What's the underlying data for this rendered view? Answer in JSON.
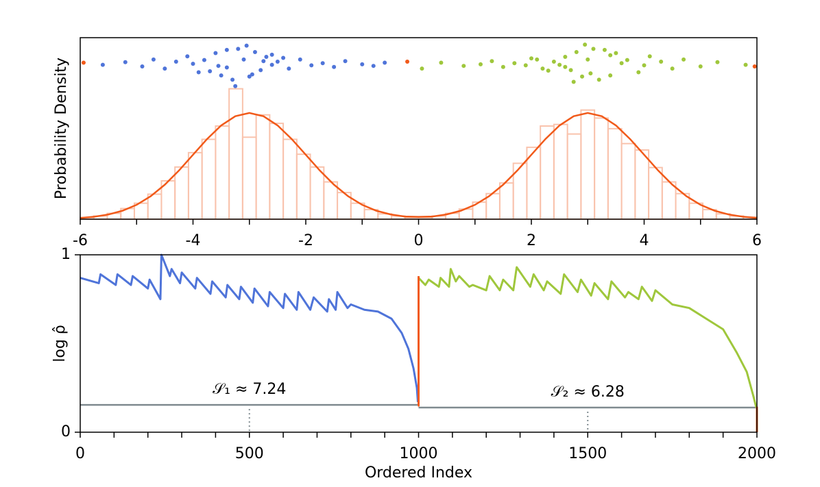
{
  "chart_data": [
    {
      "type": "histogram",
      "ylabel": "Probability Density",
      "xlim": [
        -6,
        6
      ],
      "ylim": [
        0,
        0.341
      ],
      "xticks": [
        -6,
        -4,
        -2,
        0,
        2,
        4,
        6
      ],
      "xminorticks": [
        -5,
        -3,
        -1,
        1,
        3,
        5
      ],
      "hist_color": "#f9c3ad",
      "bins": [
        -6,
        -5.76,
        -5.52,
        -5.28,
        -5.04,
        -4.8,
        -4.56,
        -4.32,
        -4.08,
        -3.84,
        -3.6,
        -3.36,
        -3.12,
        -2.88,
        -2.64,
        -2.4,
        -2.16,
        -1.92,
        -1.68,
        -1.44,
        -1.2,
        -0.96,
        -0.72,
        -0.48,
        -0.24,
        0,
        0.24,
        0.48,
        0.72,
        0.96,
        1.2,
        1.44,
        1.68,
        1.92,
        2.16,
        2.4,
        2.64,
        2.88,
        3.12,
        3.36,
        3.6,
        3.84,
        4.08,
        4.32,
        4.56,
        4.8,
        5.04,
        5.28,
        5.52,
        5.76,
        6
      ],
      "values": [
        0.003,
        0.006,
        0.011,
        0.02,
        0.03,
        0.047,
        0.072,
        0.098,
        0.125,
        0.15,
        0.175,
        0.245,
        0.154,
        0.196,
        0.18,
        0.15,
        0.122,
        0.098,
        0.07,
        0.05,
        0.03,
        0.018,
        0.01,
        0.006,
        0.003,
        0.003,
        0.006,
        0.011,
        0.019,
        0.032,
        0.048,
        0.068,
        0.105,
        0.135,
        0.175,
        0.178,
        0.16,
        0.205,
        0.19,
        0.17,
        0.142,
        0.13,
        0.097,
        0.07,
        0.048,
        0.03,
        0.018,
        0.01,
        0.006,
        0.004
      ],
      "curve": {
        "color": "#f15a1a",
        "x": [
          -6,
          -5.75,
          -5.5,
          -5.25,
          -5,
          -4.75,
          -4.5,
          -4.25,
          -4,
          -3.75,
          -3.5,
          -3.25,
          -3,
          -2.75,
          -2.5,
          -2.25,
          -2,
          -1.75,
          -1.5,
          -1.25,
          -1,
          -0.75,
          -0.5,
          -0.25,
          0,
          0.25,
          0.5,
          0.75,
          1,
          1.25,
          1.5,
          1.75,
          2,
          2.25,
          2.5,
          2.75,
          3,
          3.25,
          3.5,
          3.75,
          4,
          4.25,
          4.5,
          4.75,
          5,
          5.25,
          5.5,
          5.75,
          6
        ],
        "values": [
          0.0022,
          0.0046,
          0.0088,
          0.0159,
          0.027,
          0.0432,
          0.0648,
          0.0913,
          0.121,
          0.1506,
          0.1761,
          0.1934,
          0.1995,
          0.1934,
          0.1761,
          0.1506,
          0.121,
          0.0913,
          0.0648,
          0.0432,
          0.027,
          0.0159,
          0.009,
          0.005,
          0.0044,
          0.005,
          0.009,
          0.0159,
          0.027,
          0.0432,
          0.0648,
          0.0913,
          0.121,
          0.1506,
          0.1761,
          0.1934,
          0.1995,
          0.1934,
          0.1761,
          0.1506,
          0.121,
          0.0913,
          0.0648,
          0.0432,
          0.027,
          0.0159,
          0.0088,
          0.0046,
          0.0022
        ]
      },
      "scatter": [
        {
          "color": "#4f74d9",
          "x": [
            -5.6,
            -5.2,
            -4.9,
            -4.7,
            -4.5,
            -4.3,
            -4.1,
            -3.9,
            -3.8,
            -3.6,
            -3.5,
            -3.4,
            -3.3,
            -3.2,
            -3.1,
            -3.0,
            -2.9,
            -2.8,
            -2.7,
            -2.6,
            -2.5,
            -2.3,
            -2.1,
            -1.9,
            -1.7,
            -1.5,
            -1.3,
            -1.0,
            -0.8,
            -0.6,
            -3.25,
            -3.05,
            -2.95,
            -3.4,
            -2.6,
            -3.7,
            -4.0,
            -2.4,
            -3.55,
            -2.75
          ],
          "values": [
            0.29,
            0.295,
            0.287,
            0.3,
            0.283,
            0.296,
            0.306,
            0.276,
            0.299,
            0.312,
            0.27,
            0.318,
            0.262,
            0.32,
            0.3,
            0.268,
            0.314,
            0.28,
            0.305,
            0.29,
            0.296,
            0.283,
            0.3,
            0.289,
            0.293,
            0.286,
            0.297,
            0.291,
            0.288,
            0.294,
            0.25,
            0.326,
            0.272,
            0.285,
            0.309,
            0.278,
            0.292,
            0.303,
            0.288,
            0.297
          ]
        },
        {
          "color": "#9fc73c",
          "x": [
            0.06,
            0.4,
            0.8,
            1.1,
            1.3,
            1.5,
            1.7,
            1.9,
            2.1,
            2.2,
            2.4,
            2.5,
            2.6,
            2.7,
            2.8,
            2.9,
            3.0,
            3.1,
            3.2,
            3.3,
            3.4,
            3.5,
            3.7,
            3.9,
            4.1,
            4.3,
            4.5,
            4.7,
            5.0,
            5.3,
            5.8,
            2.75,
            2.95,
            3.05,
            2.6,
            3.4,
            2.3,
            3.6,
            2.0,
            4.0
          ],
          "values": [
            0.283,
            0.294,
            0.288,
            0.291,
            0.297,
            0.286,
            0.293,
            0.289,
            0.3,
            0.283,
            0.296,
            0.29,
            0.305,
            0.28,
            0.314,
            0.268,
            0.3,
            0.32,
            0.262,
            0.318,
            0.27,
            0.312,
            0.299,
            0.276,
            0.306,
            0.296,
            0.283,
            0.3,
            0.287,
            0.295,
            0.29,
            0.258,
            0.328,
            0.274,
            0.286,
            0.308,
            0.279,
            0.293,
            0.302,
            0.289
          ]
        },
        {
          "color": "#f15a1a",
          "x": [
            -5.94,
            -0.2,
            5.96
          ],
          "values": [
            0.294,
            0.296,
            0.287
          ]
        }
      ]
    },
    {
      "type": "line",
      "ylabel": "log ρ̂",
      "xlabel": "Ordered Index",
      "xlim": [
        0,
        2000
      ],
      "ylim": [
        0,
        1
      ],
      "xticks": [
        0,
        500,
        1000,
        1500,
        2000
      ],
      "xminorticks": [
        100,
        200,
        300,
        400,
        600,
        700,
        800,
        900,
        1100,
        1200,
        1300,
        1400,
        1600,
        1700,
        1800,
        1900
      ],
      "yticks": [
        0,
        1
      ],
      "series": [
        {
          "color": "#4f74d9",
          "x": [
            0,
            55,
            60,
            105,
            110,
            150,
            155,
            200,
            205,
            237,
            240,
            265,
            270,
            295,
            300,
            340,
            345,
            385,
            390,
            430,
            435,
            470,
            475,
            510,
            515,
            555,
            560,
            600,
            605,
            640,
            645,
            680,
            690,
            730,
            735,
            755,
            760,
            790,
            800,
            840,
            880,
            920,
            950,
            970,
            985,
            995,
            998
          ],
          "values": [
            0.87,
            0.84,
            0.89,
            0.83,
            0.89,
            0.83,
            0.88,
            0.81,
            0.86,
            0.75,
            1.0,
            0.88,
            0.92,
            0.84,
            0.9,
            0.81,
            0.87,
            0.78,
            0.85,
            0.76,
            0.83,
            0.75,
            0.82,
            0.73,
            0.81,
            0.71,
            0.79,
            0.7,
            0.78,
            0.69,
            0.79,
            0.69,
            0.76,
            0.68,
            0.75,
            0.69,
            0.79,
            0.7,
            0.72,
            0.69,
            0.68,
            0.64,
            0.56,
            0.47,
            0.36,
            0.25,
            0.17
          ]
        },
        {
          "color": "#9fc73c",
          "x": [
            1000,
            1020,
            1030,
            1060,
            1065,
            1090,
            1095,
            1110,
            1120,
            1150,
            1160,
            1200,
            1210,
            1240,
            1250,
            1280,
            1290,
            1330,
            1340,
            1370,
            1380,
            1420,
            1430,
            1470,
            1480,
            1510,
            1520,
            1560,
            1570,
            1610,
            1620,
            1650,
            1660,
            1690,
            1700,
            1750,
            1800,
            1850,
            1900,
            1940,
            1970,
            1990,
            1998
          ],
          "values": [
            0.87,
            0.83,
            0.86,
            0.82,
            0.87,
            0.82,
            0.92,
            0.85,
            0.88,
            0.82,
            0.83,
            0.8,
            0.88,
            0.8,
            0.86,
            0.8,
            0.93,
            0.82,
            0.89,
            0.8,
            0.85,
            0.78,
            0.89,
            0.79,
            0.86,
            0.77,
            0.84,
            0.75,
            0.85,
            0.76,
            0.79,
            0.75,
            0.82,
            0.74,
            0.8,
            0.72,
            0.7,
            0.64,
            0.58,
            0.45,
            0.34,
            0.2,
            0.14
          ]
        },
        {
          "color": "#f15a1a",
          "x": [
            998,
            1000,
            1000
          ],
          "values": [
            0.15,
            0.15,
            0.88
          ]
        },
        {
          "color": "#f15a1a",
          "x": [
            1998,
            2000,
            2000
          ],
          "values": [
            0.14,
            0.14,
            0.0
          ]
        }
      ],
      "levels": [
        {
          "x": [
            0,
            1000
          ],
          "value": 0.154,
          "mid": 500,
          "label": "𝒮₁ ≈ 7.24"
        },
        {
          "x": [
            1000,
            2000
          ],
          "value": 0.139,
          "mid": 1500,
          "label": "𝒮₂ ≈ 6.28"
        }
      ],
      "level_color": "#7f8a8f"
    }
  ]
}
